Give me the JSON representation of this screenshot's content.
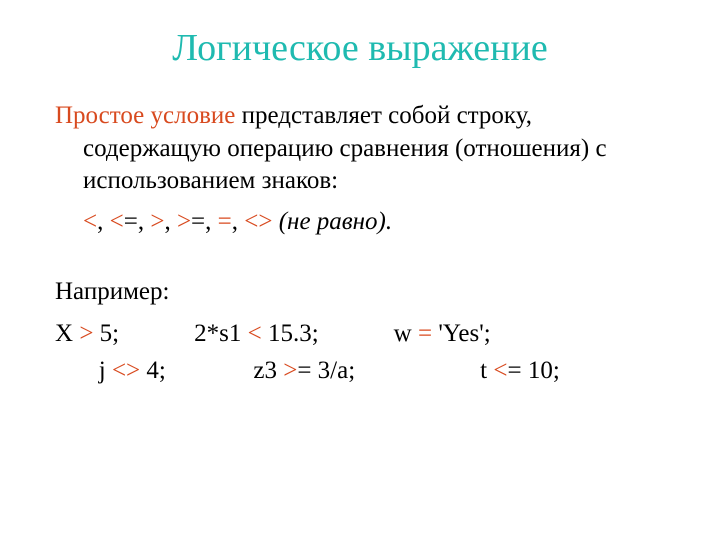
{
  "colors": {
    "title": "#1fbab0",
    "highlight": "#d84a1f",
    "text": "#000000",
    "background": "#ffffff"
  },
  "typography": {
    "title_fontsize": 38,
    "body_fontsize": 25,
    "font_family": "Times New Roman"
  },
  "title": "Логическое выражение",
  "paragraph": {
    "highlight_phrase": "Простое условие",
    "rest": " представляет собой строку, содержащую операцию сравнения (отношения) с использованием знаков:"
  },
  "operators": {
    "op1": "<",
    "sep1": ",   ",
    "op2": "<",
    "op2b": "=",
    "sep2": ",   ",
    "op3": ">",
    "sep3": ",   ",
    "op4": ">",
    "op4b": "=",
    "sep4": ",   ",
    "op5": "=",
    "sep5": ",    ",
    "op6": "<>",
    "note": " (не равно)."
  },
  "example_label": "Например:",
  "examples": {
    "line1_a": "X ",
    "line1_op1": ">",
    "line1_b": " 5;            2*s1 ",
    "line1_op2": "<",
    "line1_c": " 15.3;            w ",
    "line1_op3": "=",
    "line1_d": " 'Yes';",
    "line2_a": "       j ",
    "line2_op1": "<>",
    "line2_b": " 4;              z3 ",
    "line2_op2": ">",
    "line2_c": "= 3/a;                    t ",
    "line2_op3": "<",
    "line2_d": "= 10;"
  }
}
